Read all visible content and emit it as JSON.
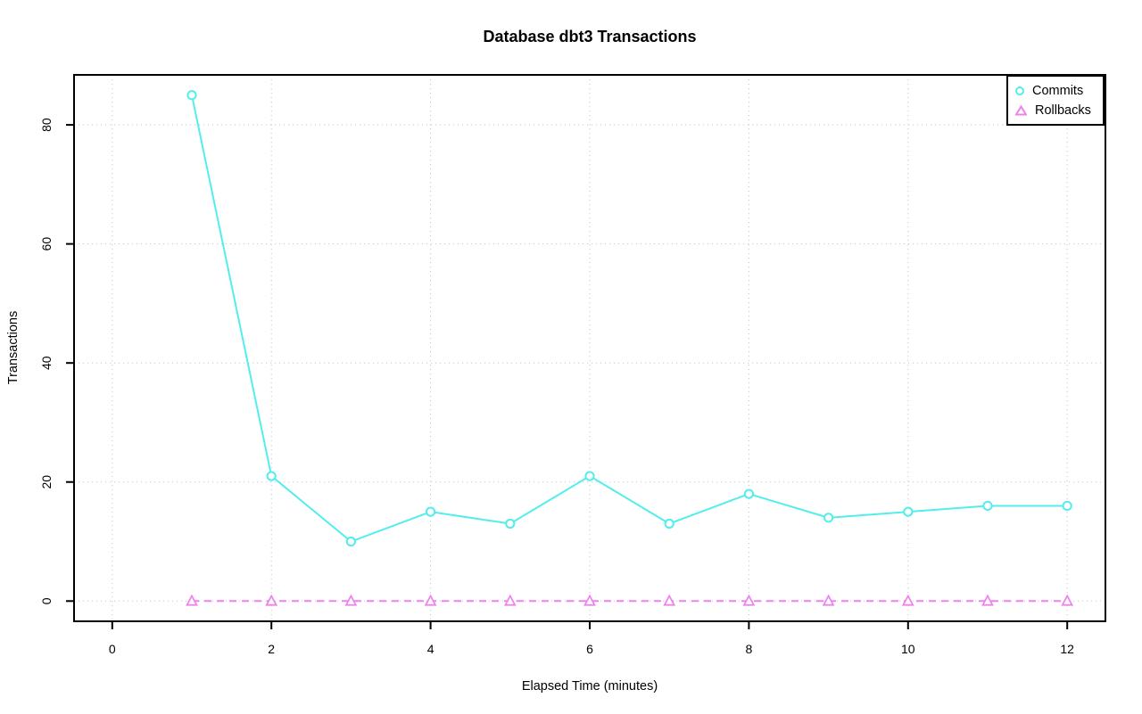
{
  "chart_data": {
    "type": "line",
    "title": "Database dbt3 Transactions",
    "xlabel": "Elapsed Time (minutes)",
    "ylabel": "Transactions",
    "x": [
      1,
      2,
      3,
      4,
      5,
      6,
      7,
      8,
      9,
      10,
      11,
      12
    ],
    "series": [
      {
        "name": "Commits",
        "marker": "circle",
        "color": "#53eded",
        "line_style": "solid",
        "values": [
          85,
          21,
          10,
          15,
          13,
          21,
          13,
          18,
          14,
          15,
          16,
          16
        ]
      },
      {
        "name": "Rollbacks",
        "marker": "triangle",
        "color": "#ee82ee",
        "line_style": "dashed",
        "values": [
          0,
          0,
          0,
          0,
          0,
          0,
          0,
          0,
          0,
          0,
          0,
          0
        ]
      }
    ],
    "xticks": [
      0,
      2,
      4,
      6,
      8,
      10,
      12
    ],
    "yticks": [
      0,
      20,
      40,
      60,
      80
    ],
    "xlim": [
      0,
      12
    ],
    "ylim": [
      0,
      85
    ],
    "grid": "dotted",
    "grid_color": "#c9c9c9",
    "legend_position": "top-right",
    "axis_color": "#000000"
  }
}
